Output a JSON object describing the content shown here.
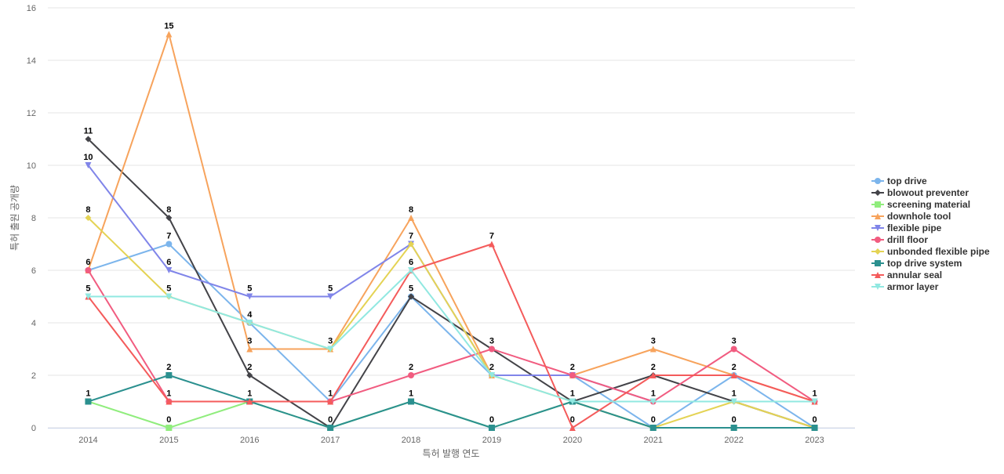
{
  "chart_data": {
    "type": "line",
    "xlabel": "특허 발행 연도",
    "ylabel": "특허 출원 공개량",
    "x": [
      "2014",
      "2015",
      "2016",
      "2017",
      "2018",
      "2019",
      "2020",
      "2021",
      "2022",
      "2023"
    ],
    "ylim": [
      0,
      16
    ],
    "yticks": [
      0,
      2,
      4,
      6,
      8,
      10,
      12,
      14,
      16
    ],
    "grid": true,
    "legend_position": "right",
    "series": [
      {
        "name": "top drive",
        "color": "#7cb5ec",
        "marker": "circle",
        "values": [
          6,
          7,
          4,
          1,
          5,
          2,
          2,
          0,
          2,
          0
        ]
      },
      {
        "name": "blowout preventer",
        "color": "#434348",
        "marker": "diamond",
        "values": [
          11,
          8,
          2,
          0,
          5,
          3,
          1,
          2,
          1,
          0
        ]
      },
      {
        "name": "screening material",
        "color": "#90ed7d",
        "marker": "square",
        "values": [
          1,
          0,
          1,
          0,
          1,
          0,
          1,
          0,
          0,
          0
        ]
      },
      {
        "name": "downhole tool",
        "color": "#f7a35c",
        "marker": "triangle",
        "values": [
          6,
          15,
          3,
          3,
          8,
          2,
          2,
          3,
          2,
          1
        ]
      },
      {
        "name": "flexible pipe",
        "color": "#8085e9",
        "marker": "triangle-down",
        "values": [
          10,
          6,
          5,
          5,
          7,
          2,
          2,
          1,
          1,
          1
        ]
      },
      {
        "name": "drill floor",
        "color": "#f15c80",
        "marker": "circle",
        "values": [
          6,
          1,
          1,
          1,
          2,
          3,
          2,
          1,
          3,
          1
        ]
      },
      {
        "name": "unbonded flexible pipe",
        "color": "#e4d354",
        "marker": "diamond",
        "values": [
          8,
          5,
          4,
          3,
          7,
          2,
          1,
          0,
          1,
          0
        ]
      },
      {
        "name": "top drive system",
        "color": "#2b908f",
        "marker": "square",
        "values": [
          1,
          2,
          1,
          0,
          1,
          0,
          1,
          0,
          0,
          0
        ]
      },
      {
        "name": "annular seal",
        "color": "#f45b5b",
        "marker": "triangle",
        "values": [
          5,
          1,
          1,
          1,
          6,
          7,
          0,
          2,
          2,
          1
        ]
      },
      {
        "name": "armor layer",
        "color": "#91e8e1",
        "marker": "triangle-down",
        "values": [
          5,
          5,
          4,
          3,
          6,
          2,
          1,
          1,
          1,
          1
        ]
      }
    ],
    "data_labels": [
      {
        "x": "2014",
        "label": "11",
        "value": 11
      },
      {
        "x": "2014",
        "label": "10",
        "value": 10
      },
      {
        "x": "2014",
        "label": "8",
        "value": 8
      },
      {
        "x": "2014",
        "label": "6",
        "value": 6
      },
      {
        "x": "2014",
        "label": "5",
        "value": 5
      },
      {
        "x": "2014",
        "label": "1",
        "value": 1
      },
      {
        "x": "2015",
        "label": "15",
        "value": 15
      },
      {
        "x": "2015",
        "label": "8",
        "value": 8
      },
      {
        "x": "2015",
        "label": "7",
        "value": 7
      },
      {
        "x": "2015",
        "label": "6",
        "value": 6
      },
      {
        "x": "2015",
        "label": "5",
        "value": 5
      },
      {
        "x": "2015",
        "label": "2",
        "value": 2
      },
      {
        "x": "2015",
        "label": "1",
        "value": 1
      },
      {
        "x": "2015",
        "label": "0",
        "value": 0
      },
      {
        "x": "2016",
        "label": "5",
        "value": 5
      },
      {
        "x": "2016",
        "label": "4",
        "value": 4
      },
      {
        "x": "2016",
        "label": "3",
        "value": 3
      },
      {
        "x": "2016",
        "label": "2",
        "value": 2
      },
      {
        "x": "2016",
        "label": "1",
        "value": 1
      },
      {
        "x": "2017",
        "label": "5",
        "value": 5
      },
      {
        "x": "2017",
        "label": "3",
        "value": 3
      },
      {
        "x": "2017",
        "label": "1",
        "value": 1
      },
      {
        "x": "2017",
        "label": "0",
        "value": 0
      },
      {
        "x": "2018",
        "label": "8",
        "value": 8
      },
      {
        "x": "2018",
        "label": "7",
        "value": 7
      },
      {
        "x": "2018",
        "label": "6",
        "value": 6
      },
      {
        "x": "2018",
        "label": "5",
        "value": 5
      },
      {
        "x": "2018",
        "label": "2",
        "value": 2
      },
      {
        "x": "2018",
        "label": "1",
        "value": 1
      },
      {
        "x": "2019",
        "label": "7",
        "value": 7
      },
      {
        "x": "2019",
        "label": "3",
        "value": 3
      },
      {
        "x": "2019",
        "label": "2",
        "value": 2
      },
      {
        "x": "2019",
        "label": "0",
        "value": 0
      },
      {
        "x": "2020",
        "label": "2",
        "value": 2
      },
      {
        "x": "2020",
        "label": "1",
        "value": 1
      },
      {
        "x": "2020",
        "label": "0",
        "value": 0
      },
      {
        "x": "2021",
        "label": "3",
        "value": 3
      },
      {
        "x": "2021",
        "label": "2",
        "value": 2
      },
      {
        "x": "2021",
        "label": "1",
        "value": 1
      },
      {
        "x": "2021",
        "label": "0",
        "value": 0
      },
      {
        "x": "2022",
        "label": "3",
        "value": 3
      },
      {
        "x": "2022",
        "label": "2",
        "value": 2
      },
      {
        "x": "2022",
        "label": "1",
        "value": 1
      },
      {
        "x": "2022",
        "label": "0",
        "value": 0
      },
      {
        "x": "2023",
        "label": "1",
        "value": 1
      },
      {
        "x": "2023",
        "label": "0",
        "value": 0
      }
    ]
  }
}
